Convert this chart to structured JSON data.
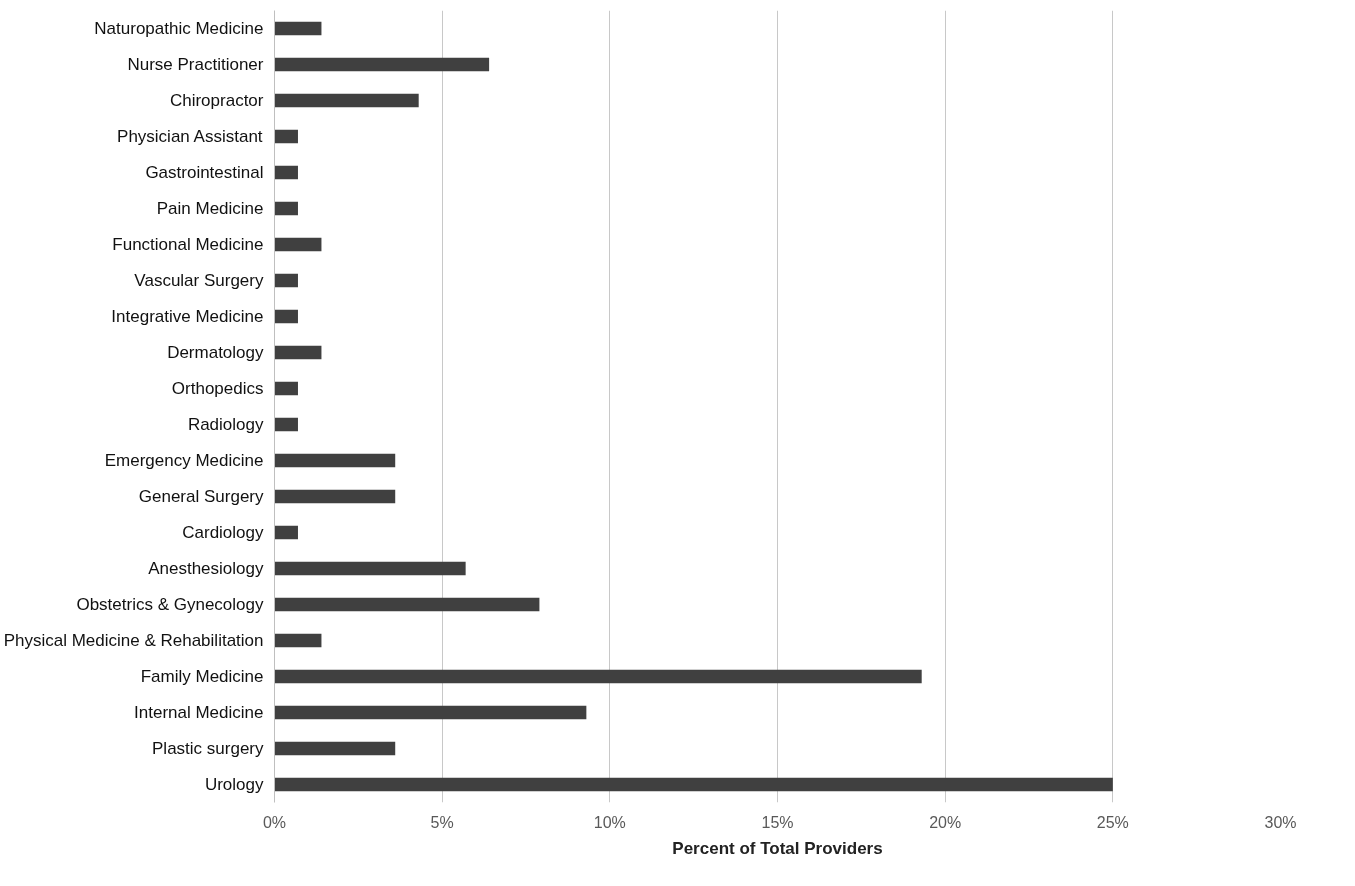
{
  "chart_data": {
    "type": "bar",
    "orientation": "horizontal",
    "xlabel": "Percent of Total Providers",
    "categories": [
      "Naturopathic Medicine",
      "Nurse Practitioner",
      "Chiropractor",
      "Physician Assistant",
      "Gastrointestinal",
      "Pain Medicine",
      "Functional Medicine",
      "Vascular Surgery",
      "Integrative Medicine",
      "Dermatology",
      "Orthopedics",
      "Radiology",
      "Emergency Medicine",
      "General Surgery",
      "Cardiology",
      "Anesthesiology",
      "Obstetrics & Gynecology",
      "Physical Medicine & Rehabilitation",
      "Family Medicine",
      "Internal Medicine",
      "Plastic surgery",
      "Urology"
    ],
    "values": [
      1.4,
      6.4,
      4.3,
      0.7,
      0.7,
      0.7,
      1.4,
      0.7,
      0.7,
      1.4,
      0.7,
      0.7,
      3.6,
      3.6,
      0.7,
      5.7,
      7.9,
      1.4,
      19.3,
      9.3,
      3.6,
      25.0
    ],
    "color": "#404040",
    "xlim": [
      0,
      30
    ],
    "xticks": [
      {
        "value": 0,
        "label": "0%"
      },
      {
        "value": 5,
        "label": "5%"
      },
      {
        "value": 10,
        "label": "10%"
      },
      {
        "value": 15,
        "label": "15%"
      },
      {
        "value": 20,
        "label": "20%"
      },
      {
        "value": 25,
        "label": "25%"
      },
      {
        "value": 30,
        "label": "30%"
      }
    ],
    "grid": "x"
  }
}
